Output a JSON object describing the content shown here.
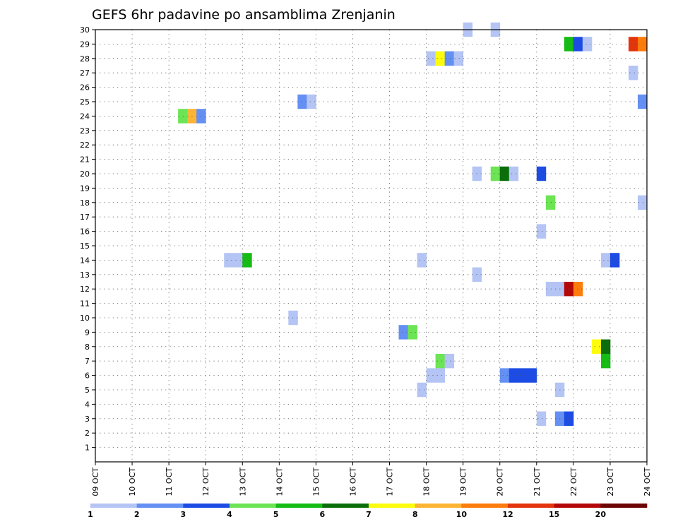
{
  "chart_data": {
    "type": "heatmap",
    "title": "GEFS 6hr padavine po ansamblima Zrenjanin",
    "xlabel": "",
    "ylabel": "",
    "x_ticks": [
      "09 OCT",
      "10 OCT",
      "11 OCT",
      "12 OCT",
      "13 OCT",
      "14 OCT",
      "15 OCT",
      "16 OCT",
      "17 OCT",
      "18 OCT",
      "19 OCT",
      "20 OCT",
      "21 OCT",
      "22 OCT",
      "23 OCT",
      "24 OCT"
    ],
    "xlim": [
      "09 OCT 00z",
      "24 OCT 00z"
    ],
    "y_ticks": [
      1,
      2,
      3,
      4,
      5,
      6,
      7,
      8,
      9,
      10,
      11,
      12,
      13,
      14,
      15,
      16,
      17,
      18,
      19,
      20,
      21,
      22,
      23,
      24,
      25,
      26,
      27,
      28,
      29,
      30
    ],
    "ylim": [
      0,
      30
    ],
    "grid": true,
    "legend": {
      "placement": "bottom",
      "labels": [
        "1",
        "2",
        "3",
        "4",
        "5",
        "6",
        "7",
        "8",
        "10",
        "12",
        "15",
        "20"
      ],
      "colors": [
        "#b4c4f4",
        "#6490f4",
        "#1c4ce4",
        "#6ce454",
        "#14bc14",
        "#0a6e0a",
        "#fcfc0c",
        "#fcb434",
        "#fc7c0c",
        "#e4340c",
        "#b40808",
        "#6c0404"
      ]
    },
    "cells": [
      {
        "member": 30,
        "day": 19.0,
        "color": "#b4c4f4"
      },
      {
        "member": 30,
        "day": 19.75,
        "color": "#b4c4f4"
      },
      {
        "member": 29,
        "day": 21.75,
        "color": "#14bc14"
      },
      {
        "member": 29,
        "day": 22.0,
        "color": "#1c4ce4"
      },
      {
        "member": 29,
        "day": 22.25,
        "color": "#b4c4f4"
      },
      {
        "member": 29,
        "day": 23.5,
        "color": "#e4340c"
      },
      {
        "member": 29,
        "day": 23.75,
        "color": "#fc7c0c"
      },
      {
        "member": 28,
        "day": 18.0,
        "color": "#b4c4f4"
      },
      {
        "member": 28,
        "day": 18.25,
        "color": "#fcfc0c"
      },
      {
        "member": 28,
        "day": 18.5,
        "color": "#6490f4"
      },
      {
        "member": 28,
        "day": 18.75,
        "color": "#b4c4f4"
      },
      {
        "member": 27,
        "day": 23.5,
        "color": "#b4c4f4"
      },
      {
        "member": 25,
        "day": 14.5,
        "color": "#6490f4"
      },
      {
        "member": 25,
        "day": 14.75,
        "color": "#b4c4f4"
      },
      {
        "member": 25,
        "day": 23.75,
        "color": "#6490f4"
      },
      {
        "member": 24,
        "day": 11.25,
        "color": "#6ce454"
      },
      {
        "member": 24,
        "day": 11.5,
        "color": "#fcb434"
      },
      {
        "member": 24,
        "day": 11.75,
        "color": "#6490f4"
      },
      {
        "member": 20,
        "day": 19.25,
        "color": "#b4c4f4"
      },
      {
        "member": 20,
        "day": 19.75,
        "color": "#6ce454"
      },
      {
        "member": 20,
        "day": 20.0,
        "color": "#0a6e0a"
      },
      {
        "member": 20,
        "day": 20.25,
        "color": "#b4c4f4"
      },
      {
        "member": 20,
        "day": 21.0,
        "color": "#1c4ce4"
      },
      {
        "member": 18,
        "day": 21.25,
        "color": "#6ce454"
      },
      {
        "member": 18,
        "day": 23.75,
        "color": "#b4c4f4"
      },
      {
        "member": 16,
        "day": 21.0,
        "color": "#b4c4f4"
      },
      {
        "member": 14,
        "day": 12.5,
        "color": "#b4c4f4"
      },
      {
        "member": 14,
        "day": 12.75,
        "color": "#b4c4f4"
      },
      {
        "member": 14,
        "day": 13.0,
        "color": "#14bc14"
      },
      {
        "member": 14,
        "day": 17.75,
        "color": "#b4c4f4"
      },
      {
        "member": 14,
        "day": 22.75,
        "color": "#b4c4f4"
      },
      {
        "member": 14,
        "day": 23.0,
        "color": "#1c4ce4"
      },
      {
        "member": 13,
        "day": 19.25,
        "color": "#b4c4f4"
      },
      {
        "member": 12,
        "day": 21.25,
        "color": "#b4c4f4"
      },
      {
        "member": 12,
        "day": 21.5,
        "color": "#b4c4f4"
      },
      {
        "member": 12,
        "day": 21.75,
        "color": "#b40808"
      },
      {
        "member": 12,
        "day": 22.0,
        "color": "#fc7c0c"
      },
      {
        "member": 10,
        "day": 14.25,
        "color": "#b4c4f4"
      },
      {
        "member": 9,
        "day": 17.25,
        "color": "#6490f4"
      },
      {
        "member": 9,
        "day": 17.5,
        "color": "#6ce454"
      },
      {
        "member": 8,
        "day": 22.5,
        "color": "#fcfc0c"
      },
      {
        "member": 8,
        "day": 22.75,
        "color": "#0a6e0a"
      },
      {
        "member": 7,
        "day": 18.25,
        "color": "#6ce454"
      },
      {
        "member": 7,
        "day": 18.5,
        "color": "#b4c4f4"
      },
      {
        "member": 7,
        "day": 22.75,
        "color": "#14bc14"
      },
      {
        "member": 6,
        "day": 18.0,
        "color": "#b4c4f4"
      },
      {
        "member": 6,
        "day": 18.25,
        "color": "#b4c4f4"
      },
      {
        "member": 6,
        "day": 20.0,
        "color": "#6490f4"
      },
      {
        "member": 6,
        "day": 20.25,
        "color": "#1c4ce4"
      },
      {
        "member": 6,
        "day": 20.5,
        "color": "#1c4ce4"
      },
      {
        "member": 6,
        "day": 20.75,
        "color": "#1c4ce4"
      },
      {
        "member": 5,
        "day": 17.75,
        "color": "#b4c4f4"
      },
      {
        "member": 5,
        "day": 21.5,
        "color": "#b4c4f4"
      },
      {
        "member": 3,
        "day": 21.0,
        "color": "#b4c4f4"
      },
      {
        "member": 3,
        "day": 21.5,
        "color": "#6490f4"
      },
      {
        "member": 3,
        "day": 21.75,
        "color": "#1c4ce4"
      }
    ]
  }
}
